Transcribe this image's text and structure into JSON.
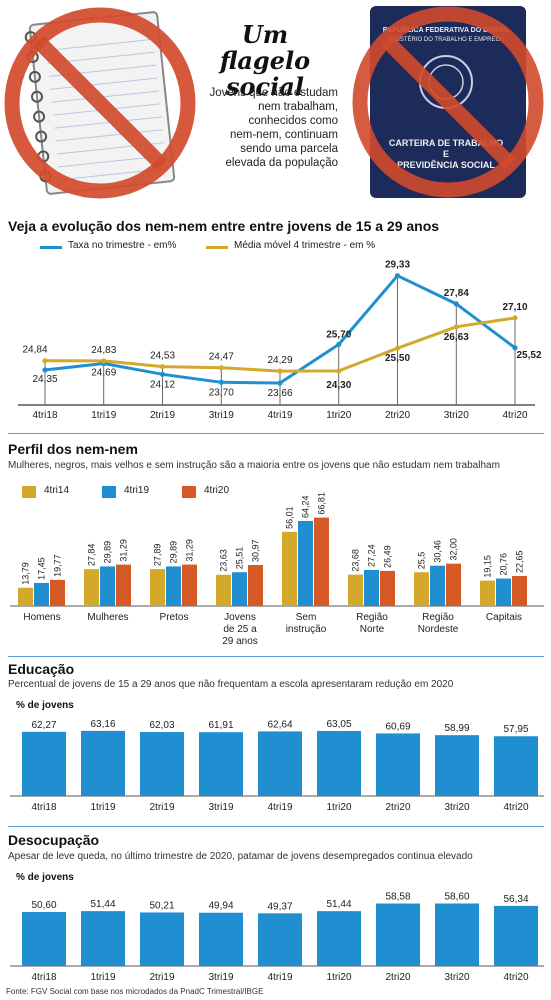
{
  "header": {
    "title_line1": "Um flagelo",
    "title_line2": "social",
    "description": [
      "Jovens que não estudam",
      "nem trabalham,",
      "conhecidos como",
      "nem-nem, continuam",
      "sendo uma parcela",
      "elevada da população"
    ],
    "booklet_lines": [
      "REPÚBLICA FEDERATIVA DO BRASIL",
      "MINISTÉRIO DO TRABALHO E EMPREGO"
    ],
    "booklet_title": [
      "CARTEIRA DE TRABALHO",
      "E",
      "PREVIDÊNCIA SOCIAL"
    ]
  },
  "colors": {
    "blue": "#1f8fd1",
    "gold": "#d4a82a",
    "orange": "#d65a25",
    "ban_red": "#d24a2c",
    "navy": "#1d2b5a"
  },
  "chart_data": [
    {
      "id": "evolucao",
      "type": "line",
      "title": "Veja a evolução dos nem-nem entre entre jovens de 15 a 29 anos",
      "categories": [
        "4tri18",
        "1tri19",
        "2tri19",
        "3tri19",
        "4tri19",
        "1tri20",
        "2tri20",
        "3tri20",
        "4tri20"
      ],
      "series": [
        {
          "name": "Taxa no trimestre - em%",
          "color": "#1f8fd1",
          "values": [
            24.35,
            24.69,
            24.12,
            23.7,
            23.66,
            25.7,
            29.33,
            27.84,
            25.52
          ],
          "labels": [
            "24,35",
            "24,69",
            "24,12",
            "23,70",
            "23,66",
            "25,70",
            "29,33",
            "27,84",
            "25,52"
          ]
        },
        {
          "name": "Média móvel 4 trimestre - em %",
          "color": "#d4a82a",
          "values": [
            24.84,
            24.83,
            24.53,
            24.47,
            24.29,
            24.3,
            25.5,
            26.63,
            27.1
          ],
          "labels": [
            "24,84",
            "24,83",
            "24,53",
            "24,47",
            "24,29",
            "24,30",
            "25,50",
            "26,63",
            "27,10"
          ]
        }
      ],
      "grid": "vertical drop lines"
    },
    {
      "id": "perfil",
      "type": "bar",
      "title": "Perfil dos nem-nem",
      "subtitle": "Mulheres, negros, mais velhos e sem instrução são a maioria entre os jovens que não estudam nem trabalham",
      "categories": [
        [
          "Homens"
        ],
        [
          "Mulheres"
        ],
        [
          "Pretos"
        ],
        [
          "Jovens",
          "de 25 a",
          "29 anos"
        ],
        [
          "Sem",
          "instrução"
        ],
        [
          "Região",
          "Norte"
        ],
        [
          "Região",
          "Nordeste"
        ],
        [
          "Capitais"
        ]
      ],
      "series": [
        {
          "name": "4tri14",
          "color": "#d4a82a",
          "values": [
            13.79,
            27.84,
            27.89,
            23.63,
            56.01,
            23.68,
            25.5,
            19.15
          ],
          "labels": [
            "13,79",
            "27,84",
            "27,89",
            "23,63",
            "56,01",
            "23,68",
            "25,5",
            "19,15"
          ]
        },
        {
          "name": "4tri19",
          "color": "#1f8fd1",
          "values": [
            17.45,
            29.89,
            29.89,
            25.51,
            64.24,
            27.24,
            30.46,
            20.76
          ],
          "labels": [
            "17,45",
            "29,89",
            "29,89",
            "25,51",
            "64,24",
            "27,24",
            "30,46",
            "20,76"
          ]
        },
        {
          "name": "4tri20",
          "color": "#d65a25",
          "values": [
            19.77,
            31.29,
            31.29,
            30.97,
            66.81,
            26.49,
            32.0,
            22.65
          ],
          "labels": [
            "19,77",
            "31,29",
            "31,29",
            "30,97",
            "66,81",
            "26,49",
            "32,00",
            "22,65"
          ]
        }
      ],
      "legend": "top-left"
    },
    {
      "id": "educacao",
      "type": "bar",
      "title": "Educação",
      "subtitle": "Percentual de jovens de 15 a 29 anos que não frequentam a escola apresentaram redução em 2020",
      "unit_label": "% de jovens",
      "categories": [
        "4tri18",
        "1tri19",
        "2tri19",
        "3tri19",
        "4tri19",
        "1tri20",
        "2tri20",
        "3tri20",
        "4tri20"
      ],
      "values": [
        62.27,
        63.16,
        62.03,
        61.91,
        62.64,
        63.05,
        60.69,
        58.99,
        57.95
      ],
      "labels": [
        "62,27",
        "63,16",
        "62,03",
        "61,91",
        "62,64",
        "63,05",
        "60,69",
        "58,99",
        "57,95"
      ],
      "color": "#1f8fd1"
    },
    {
      "id": "desocupacao",
      "type": "bar",
      "title": "Desocupação",
      "subtitle": "Apesar de leve queda, no último trimestre de 2020, patamar de jovens desempregados continua elevado",
      "unit_label": "% de jovens",
      "categories": [
        "4tri18",
        "1tri19",
        "2tri19",
        "3tri19",
        "4tri19",
        "1tri20",
        "2tri20",
        "3tri20",
        "4tri20"
      ],
      "values": [
        50.6,
        51.44,
        50.21,
        49.94,
        49.37,
        51.44,
        58.58,
        58.6,
        56.34
      ],
      "labels": [
        "50,60",
        "51,44",
        "50,21",
        "49,94",
        "49,37",
        "51,44",
        "58,58",
        "58,60",
        "56,34"
      ],
      "color": "#1f8fd1"
    }
  ],
  "source": "Fonte: FGV Social com base nos microdados da PnadC Trimestral/IBGE"
}
